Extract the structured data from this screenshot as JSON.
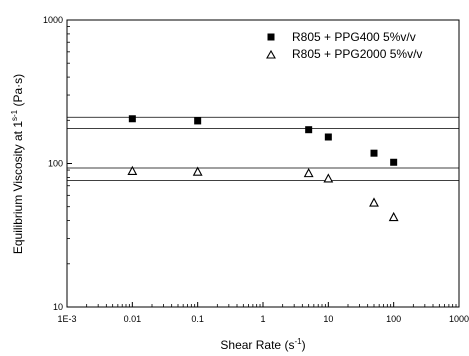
{
  "chart_data": {
    "type": "scatter",
    "xscale": "log",
    "yscale": "log",
    "xlim": [
      0.001,
      1000
    ],
    "ylim": [
      10,
      1000
    ],
    "xticks": [
      0.001,
      0.01,
      0.1,
      1,
      10,
      100,
      1000
    ],
    "xtick_labels": [
      "1E-3",
      "0.01",
      "0.1",
      "1",
      "10",
      "100",
      "1000"
    ],
    "yticks": [
      10,
      100,
      1000
    ],
    "ytick_labels": [
      "10",
      "100",
      "1000"
    ],
    "xlabel": {
      "pre": "Shear Rate (s",
      "sup": "-1",
      "post": ")"
    },
    "ylabel": {
      "pre": "Equilibrium Viscosity at 1",
      "sup": "s-1",
      "post": " (Pa·s)"
    },
    "grid": false,
    "legend_position": "top-right",
    "series": [
      {
        "name": "R805 + PPG400 5%v/v",
        "marker": "filled-square",
        "x": [
          0.01,
          0.1,
          5,
          10,
          50,
          100
        ],
        "y": [
          205,
          198,
          172,
          153,
          118,
          102
        ]
      },
      {
        "name": "R805 + PPG2000 5%v/v",
        "marker": "open-triangle",
        "x": [
          0.01,
          0.1,
          5,
          10,
          50,
          100
        ],
        "y": [
          88,
          87,
          85,
          78,
          53,
          42
        ]
      }
    ],
    "reference_lines_y": [
      210,
      175,
      93,
      76
    ]
  }
}
